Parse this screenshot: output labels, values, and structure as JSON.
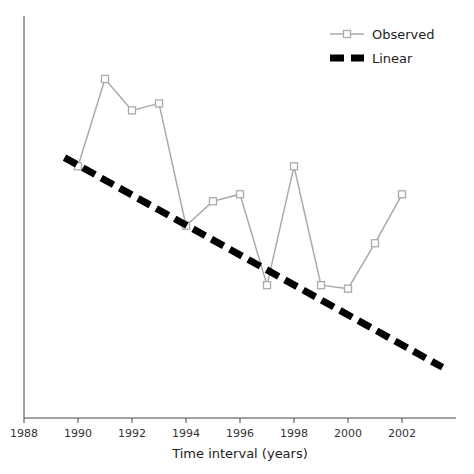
{
  "chart_data": {
    "type": "line",
    "xlabel": "Time interval (years)",
    "xlim": [
      1988.0,
      2004.0
    ],
    "ylim": [
      0.0,
      1.15
    ],
    "xticks": [
      1988,
      1990,
      1992,
      1994,
      1996,
      1998,
      2000,
      2002
    ],
    "tick_labels": "x",
    "grid": false,
    "legend": "upper right",
    "series": [
      {
        "name": "Observed",
        "color": "#aaaaaa",
        "marker": "square",
        "line_style": "solid",
        "x": [
          1990,
          1991,
          1992,
          1993,
          1994,
          1995,
          1996,
          1997,
          1998,
          1999,
          2000,
          2001,
          2002
        ],
        "values": [
          0.72,
          0.97,
          0.88,
          0.9,
          0.55,
          0.62,
          0.64,
          0.38,
          0.72,
          0.38,
          0.37,
          0.5,
          0.64
        ]
      },
      {
        "name": "Linear",
        "color": "#000000",
        "line_style": "dashed",
        "x": [
          1989.5,
          2003.5
        ],
        "values": [
          0.745,
          0.145
        ]
      }
    ]
  }
}
